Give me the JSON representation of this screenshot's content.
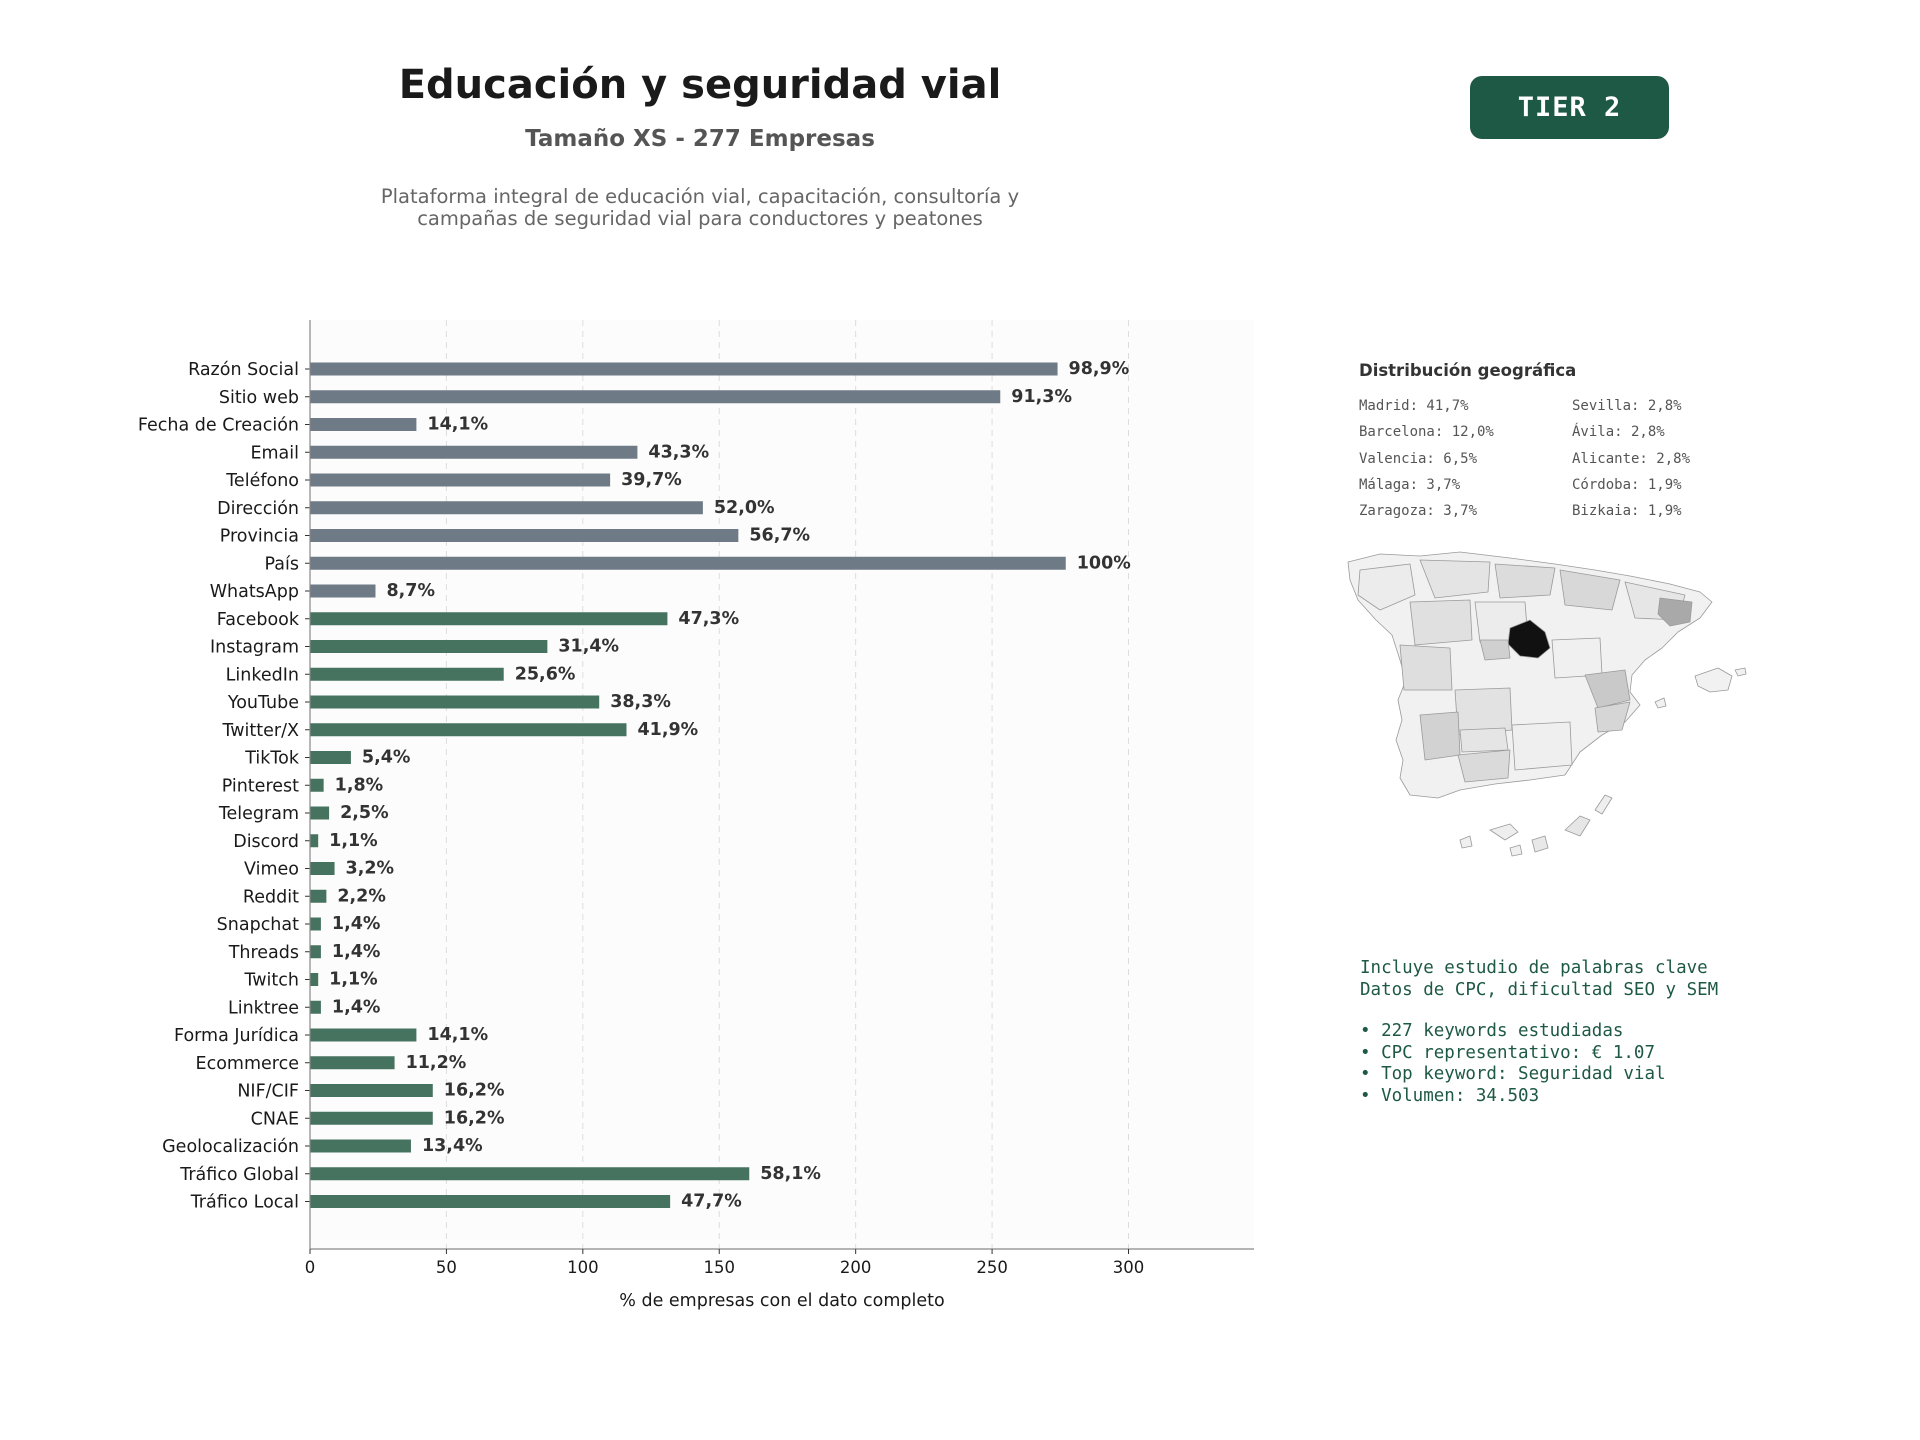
{
  "header": {
    "title": "Educación y seguridad vial",
    "subtitle": "Tamaño XS - 277 Empresas",
    "description_lines": [
      "Plataforma integral de educación vial, capacitación, consultoría y",
      "campañas de seguridad vial para conductores y peatones"
    ],
    "tier_badge": "TIER 2"
  },
  "chart_data": {
    "type": "bar",
    "orientation": "horizontal",
    "xlabel": "% de empresas con el dato completo",
    "xlim": [
      0,
      346
    ],
    "xticks": [
      0,
      50,
      100,
      150,
      200,
      250,
      300
    ],
    "grid": true,
    "categories": [
      "Razón Social",
      "Sitio web",
      "Fecha de Creación",
      "Email",
      "Teléfono",
      "Dirección",
      "Provincia",
      "País",
      "WhatsApp",
      "Facebook",
      "Instagram",
      "LinkedIn",
      "YouTube",
      "Twitter/X",
      "TikTok",
      "Pinterest",
      "Telegram",
      "Discord",
      "Vimeo",
      "Reddit",
      "Snapchat",
      "Threads",
      "Twitch",
      "Linktree",
      "Forma Jurídica",
      "Ecommerce",
      "NIF/CIF",
      "CNAE",
      "Geolocalización",
      "Tráfico Global",
      "Tráfico Local"
    ],
    "values": [
      274,
      253,
      39,
      120,
      110,
      144,
      157,
      277,
      24,
      131,
      87,
      71,
      106,
      116,
      15,
      5,
      7,
      3,
      9,
      6,
      4,
      4,
      3,
      4,
      39,
      31,
      45,
      45,
      37,
      161,
      132
    ],
    "labels": [
      "98,9%",
      "91,3%",
      "14,1%",
      "43,3%",
      "39,7%",
      "52,0%",
      "56,7%",
      "100%",
      "8,7%",
      "47,3%",
      "31,4%",
      "25,6%",
      "38,3%",
      "41,9%",
      "5,4%",
      "1,8%",
      "2,5%",
      "1,1%",
      "3,2%",
      "2,2%",
      "1,4%",
      "1,4%",
      "1,1%",
      "1,4%",
      "14,1%",
      "11,2%",
      "16,2%",
      "16,2%",
      "13,4%",
      "58,1%",
      "47,7%"
    ],
    "group_split_index": 9,
    "colors": {
      "basic": "#6e7a85",
      "digital": "#46735f",
      "plot_bg": "#fcfcfc",
      "grid": "#dddddd"
    }
  },
  "geo": {
    "title": "Distribución geográfica",
    "items": [
      "Madrid: 41,7%",
      "Barcelona: 12,0%",
      "Valencia: 6,5%",
      "Málaga: 3,7%",
      "Zaragoza: 3,7%",
      "Sevilla: 2,8%",
      "Ávila: 2,8%",
      "Alicante: 2,8%",
      "Córdoba: 1,9%",
      "Bizkaia: 1,9%"
    ]
  },
  "info": {
    "lines": [
      "Incluye estudio de palabras clave",
      "Datos de CPC, dificultad SEO y SEM"
    ],
    "bullets": [
      "• 227 keywords estudiadas",
      "• CPC representativo: € 1.07",
      "• Top keyword: Seguridad vial",
      "• Volumen: 34.503"
    ]
  }
}
